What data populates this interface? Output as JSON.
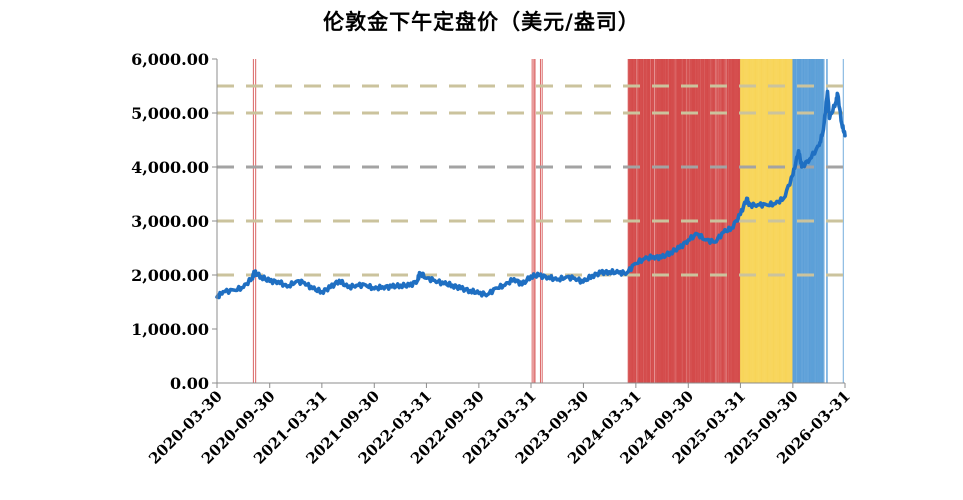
{
  "chart_data": {
    "type": "line",
    "title": "伦敦金下午定盘价（美元/盎司）",
    "xlabel": "",
    "ylabel": "",
    "ylim": [
      0,
      6000
    ],
    "xlim": [
      "2020-03-30",
      "2026-03-31"
    ],
    "y_ticks": [
      "0.00",
      "1,000.00",
      "2,000.00",
      "3,000.00",
      "4,000.00",
      "5,000.00",
      "6,000.00"
    ],
    "x_ticks": [
      "2020-03-30",
      "2020-09-30",
      "2021-03-31",
      "2021-09-30",
      "2022-03-31",
      "2022-09-30",
      "2023-03-31",
      "2023-09-30",
      "2024-03-31",
      "2024-09-30",
      "2025-03-31",
      "2025-09-30",
      "2026-03-31"
    ],
    "grid": false,
    "legend": "none",
    "series": [
      {
        "color": "#1f6fc2",
        "points": [
          [
            "2020-03-30",
            1590
          ],
          [
            "2020-04-20",
            1690
          ],
          [
            "2020-05-29",
            1720
          ],
          [
            "2020-06-30",
            1770
          ],
          [
            "2020-07-31",
            1950
          ],
          [
            "2020-08-07",
            2045
          ],
          [
            "2020-08-31",
            1970
          ],
          [
            "2020-09-30",
            1885
          ],
          [
            "2020-10-30",
            1880
          ],
          [
            "2020-11-30",
            1780
          ],
          [
            "2020-12-31",
            1880
          ],
          [
            "2021-01-29",
            1860
          ],
          [
            "2021-02-26",
            1750
          ],
          [
            "2021-03-31",
            1690
          ],
          [
            "2021-04-30",
            1770
          ],
          [
            "2021-05-31",
            1900
          ],
          [
            "2021-06-30",
            1770
          ],
          [
            "2021-07-30",
            1810
          ],
          [
            "2021-08-31",
            1815
          ],
          [
            "2021-09-30",
            1745
          ],
          [
            "2021-10-29",
            1780
          ],
          [
            "2021-11-30",
            1780
          ],
          [
            "2021-12-31",
            1810
          ],
          [
            "2022-01-31",
            1800
          ],
          [
            "2022-02-28",
            1900
          ],
          [
            "2022-03-08",
            2040
          ],
          [
            "2022-03-31",
            1940
          ],
          [
            "2022-04-29",
            1900
          ],
          [
            "2022-05-31",
            1840
          ],
          [
            "2022-06-30",
            1810
          ],
          [
            "2022-07-29",
            1750
          ],
          [
            "2022-08-31",
            1710
          ],
          [
            "2022-09-30",
            1660
          ],
          [
            "2022-10-31",
            1640
          ],
          [
            "2022-11-30",
            1760
          ],
          [
            "2022-12-30",
            1810
          ],
          [
            "2023-01-31",
            1930
          ],
          [
            "2023-02-28",
            1820
          ],
          [
            "2023-03-31",
            1980
          ],
          [
            "2023-04-28",
            1990
          ],
          [
            "2023-05-31",
            1960
          ],
          [
            "2023-06-30",
            1910
          ],
          [
            "2023-07-31",
            1960
          ],
          [
            "2023-08-31",
            1940
          ],
          [
            "2023-09-29",
            1870
          ],
          [
            "2023-10-31",
            1990
          ],
          [
            "2023-11-30",
            2040
          ],
          [
            "2023-12-29",
            2060
          ],
          [
            "2024-01-31",
            2040
          ],
          [
            "2024-02-29",
            2040
          ],
          [
            "2024-03-28",
            2210
          ],
          [
            "2024-04-30",
            2300
          ],
          [
            "2024-05-31",
            2340
          ],
          [
            "2024-06-28",
            2320
          ],
          [
            "2024-07-31",
            2420
          ],
          [
            "2024-08-30",
            2500
          ],
          [
            "2024-09-30",
            2650
          ],
          [
            "2024-10-31",
            2760
          ],
          [
            "2024-11-29",
            2650
          ],
          [
            "2024-12-31",
            2610
          ],
          [
            "2025-01-31",
            2790
          ],
          [
            "2025-02-28",
            2870
          ],
          [
            "2025-03-31",
            3120
          ],
          [
            "2025-04-22",
            3420
          ],
          [
            "2025-04-30",
            3290
          ],
          [
            "2025-05-30",
            3300
          ],
          [
            "2025-06-30",
            3300
          ],
          [
            "2025-07-31",
            3320
          ],
          [
            "2025-08-29",
            3420
          ],
          [
            "2025-09-30",
            3850
          ],
          [
            "2025-10-20",
            4300
          ],
          [
            "2025-10-31",
            4000
          ],
          [
            "2025-11-28",
            4150
          ],
          [
            "2025-12-31",
            4400
          ],
          [
            "2026-01-15",
            4700
          ],
          [
            "2026-01-29",
            5400
          ],
          [
            "2026-02-05",
            4900
          ],
          [
            "2026-02-27",
            5200
          ],
          [
            "2026-03-05",
            5350
          ],
          [
            "2026-03-20",
            4800
          ],
          [
            "2026-03-31",
            4580
          ]
        ]
      }
    ],
    "reference_lines": [
      {
        "y": 5500,
        "style": "dashed",
        "color": "#cbc39d"
      },
      {
        "y": 5000,
        "style": "dashed",
        "color": "#cbc39d"
      },
      {
        "y": 4000,
        "style": "dashed",
        "color": "#a3a3a3"
      },
      {
        "y": 3000,
        "style": "dashed",
        "color": "#cbc39d"
      },
      {
        "y": 2000,
        "style": "dashed",
        "color": "#cbc39d"
      }
    ],
    "shaded_periods": [
      {
        "color": "#d44a4a",
        "dates": [
          "2020-08-04",
          "2020-08-12"
        ]
      },
      {
        "color": "#d44a4a",
        "dates": [
          "2023-04-04",
          "2023-04-10",
          "2023-04-14",
          "2023-05-03",
          "2023-05-09"
        ]
      },
      {
        "color": "#d44a4a",
        "start": "2024-03-04",
        "end": "2025-03-31",
        "density": "dense"
      },
      {
        "color": "#f7d24c",
        "start": "2025-03-31",
        "end": "2025-09-30",
        "density": "full"
      },
      {
        "color": "#5b9fd8",
        "start": "2025-09-30",
        "end": "2026-01-20",
        "density": "dense"
      },
      {
        "color": "#5b9fd8",
        "dates": [
          "2026-01-26",
          "2026-01-28",
          "2026-03-25"
        ]
      }
    ]
  }
}
